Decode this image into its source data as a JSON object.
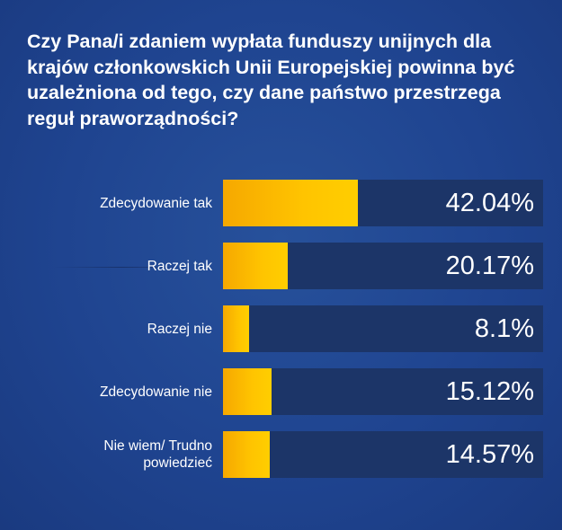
{
  "chart_data": {
    "type": "bar",
    "orientation": "horizontal",
    "title": "Czy Pana/i zdaniem wypłata funduszy unijnych dla krajów członkowskich Unii Europejskiej powinna być uzależniona od tego, czy dane państwo przestrzega reguł praworządności?",
    "categories": [
      "Zdecydowanie tak",
      "Raczej tak",
      "Raczej nie",
      "Zdecydowanie nie",
      "Nie wiem/ Trudno powiedzieć"
    ],
    "values": [
      42.04,
      20.17,
      8.1,
      15.12,
      14.57
    ],
    "value_labels": [
      "42.04%",
      "20.17%",
      "8.1%",
      "15.12%",
      "14.57%"
    ],
    "xlim": [
      0,
      100
    ],
    "unit": "%",
    "bar_color": "#ffc400",
    "track_color": "#1c3568",
    "background_color": "#1f4490"
  }
}
